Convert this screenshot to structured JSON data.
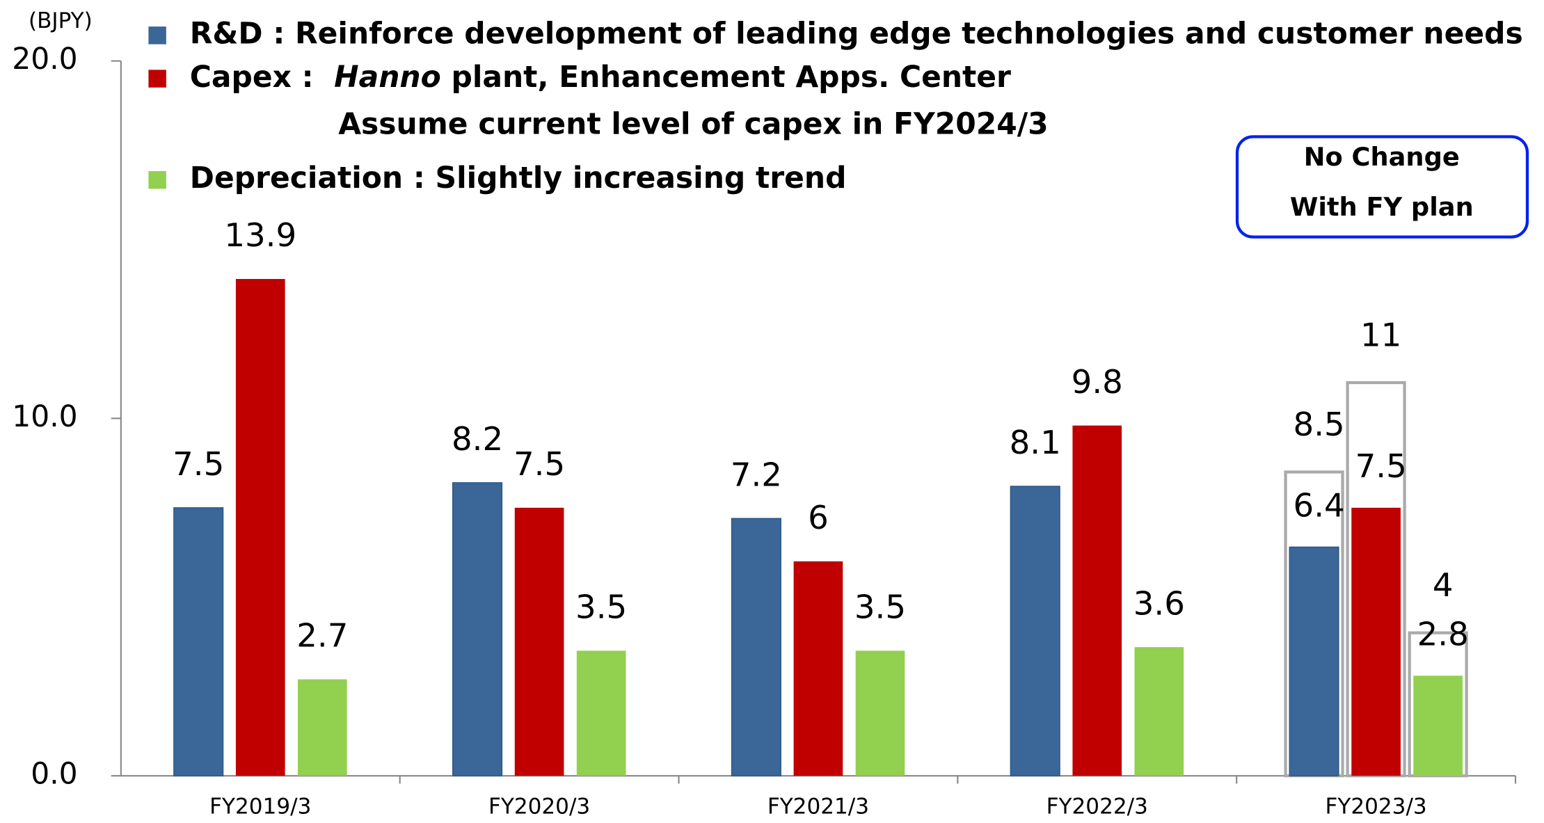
{
  "chart_data": {
    "type": "bar",
    "unit": "(BJPY)",
    "categories": [
      "FY2019/3",
      "FY2020/3",
      "FY2021/3",
      "FY2022/3",
      "FY2023/3"
    ],
    "series": [
      {
        "name": "R&D : Reinforce development of leading edge technologies and customer needs",
        "color": "#3a6698",
        "values": [
          7.5,
          8.2,
          7.2,
          8.1,
          6.4
        ]
      },
      {
        "name": "Capex :  Hanno plant, Enhancement Apps. Center",
        "italic": "Hanno",
        "note": "Assume current level of capex in FY2024/3",
        "color": "#c00000",
        "values": [
          13.9,
          7.5,
          6.0,
          9.8,
          7.5
        ]
      },
      {
        "name": "Depreciation :  Slightly increasing trend",
        "color": "#92d050",
        "values": [
          2.7,
          3.5,
          3.5,
          3.6,
          2.8
        ]
      }
    ],
    "plan": {
      "category": "FY2023/3",
      "values": [
        8.5,
        11.0,
        4.0
      ],
      "color": "#aaaaaa",
      "box_lines": [
        "No Change",
        "With FY plan"
      ],
      "box_color": "#0022ee"
    },
    "ylim": [
      0,
      20
    ],
    "yticks": [
      {
        "value": 0,
        "label": "0.0"
      },
      {
        "value": 10,
        "label": "10.0"
      },
      {
        "value": 20,
        "label": "20.0"
      }
    ],
    "grid": false
  }
}
